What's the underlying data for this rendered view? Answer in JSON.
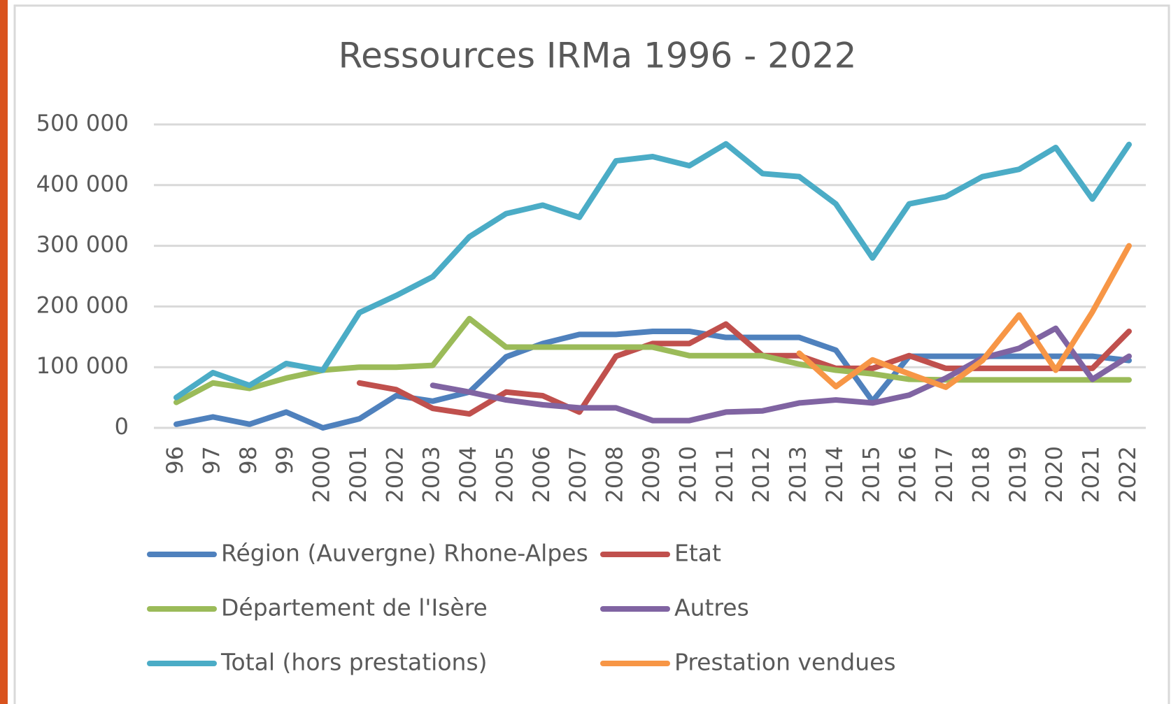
{
  "chart_data": {
    "type": "line",
    "title": "Ressources IRMa 1996 - 2022",
    "categories": [
      "96",
      "97",
      "98",
      "99",
      "2000",
      "2001",
      "2002",
      "2003",
      "2004",
      "2005",
      "2006",
      "2007",
      "2008",
      "2009",
      "2010",
      "2011",
      "2012",
      "2013",
      "2014",
      "2015",
      "2016",
      "2017",
      "2018",
      "2019",
      "2020",
      "2021",
      "2022"
    ],
    "ylim": [
      0,
      500000
    ],
    "yticks": [
      0,
      {
        "value": 100000,
        "label": "100 000"
      },
      {
        "value": 200000,
        "label": "200 000"
      },
      {
        "value": 300000,
        "label": "300 000"
      },
      {
        "value": 400000,
        "label": "400 000"
      },
      {
        "value": 500000,
        "label": "500 000"
      }
    ],
    "grid": true,
    "series": [
      {
        "name": "Région (Auvergne) Rhone-Alpes",
        "color": "#4f81bd",
        "values": [
          6000,
          18000,
          6000,
          26000,
          0,
          15000,
          53000,
          44000,
          59000,
          117000,
          139000,
          154000,
          154000,
          159000,
          159000,
          149000,
          149000,
          149000,
          128000,
          44000,
          118000,
          118000,
          118000,
          118000,
          118000,
          118000,
          111000
        ]
      },
      {
        "name": "Etat",
        "color": "#c0504d",
        "values": [
          null,
          null,
          null,
          null,
          null,
          74000,
          63000,
          32000,
          23000,
          59000,
          53000,
          26000,
          118000,
          139000,
          139000,
          171000,
          119000,
          119000,
          98000,
          98000,
          119000,
          98000,
          98000,
          98000,
          98000,
          98000,
          159000
        ]
      },
      {
        "name": "Département de l'Isère",
        "color": "#9bbb59",
        "values": [
          42000,
          74000,
          65000,
          82000,
          95000,
          100000,
          100000,
          103000,
          180000,
          133000,
          133000,
          133000,
          133000,
          133000,
          119000,
          119000,
          119000,
          105000,
          95000,
          89000,
          80000,
          79000,
          79000,
          79000,
          79000,
          79000,
          79000
        ]
      },
      {
        "name": "Autres",
        "color": "#8064a2",
        "values": [
          null,
          null,
          null,
          null,
          null,
          null,
          null,
          70000,
          59000,
          46000,
          38000,
          33000,
          33000,
          12000,
          12000,
          26000,
          28000,
          41000,
          46000,
          41000,
          54000,
          82000,
          115000,
          131000,
          164000,
          80000,
          118000
        ]
      },
      {
        "name": "Total (hors prestations)",
        "color": "#4bacc6",
        "values": [
          50000,
          91000,
          70000,
          106000,
          95000,
          190000,
          218000,
          249000,
          315000,
          353000,
          367000,
          347000,
          440000,
          447000,
          432000,
          468000,
          419000,
          414000,
          369000,
          280000,
          369000,
          381000,
          414000,
          426000,
          462000,
          377000,
          467000
        ]
      },
      {
        "name": "Prestation vendues",
        "color": "#f79646",
        "values": [
          null,
          null,
          null,
          null,
          null,
          null,
          null,
          null,
          null,
          null,
          null,
          null,
          null,
          null,
          null,
          null,
          null,
          123000,
          68000,
          112000,
          89000,
          67000,
          111000,
          186000,
          95000,
          191000,
          300000
        ]
      }
    ]
  }
}
